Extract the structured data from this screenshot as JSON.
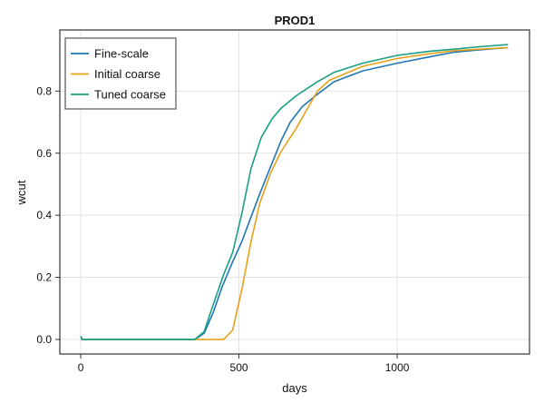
{
  "chart_data": {
    "type": "line",
    "title": "PROD1",
    "xlabel": "days",
    "ylabel": "wcut",
    "xlim": [
      -66,
      1418
    ],
    "ylim": [
      -0.047,
      0.997
    ],
    "xticks": [
      0,
      500,
      1000
    ],
    "xtick_labels": [
      "0",
      "500",
      "1000"
    ],
    "yticks": [
      0.0,
      0.2,
      0.4,
      0.6,
      0.8
    ],
    "ytick_labels": [
      "0.0",
      "0.2",
      "0.4",
      "0.6",
      "0.8"
    ],
    "grid": true,
    "legend_position": "top-left",
    "series": [
      {
        "name": "Fine-scale",
        "color": "#1f77b4",
        "x": [
          0,
          5,
          100,
          200,
          300,
          361,
          390,
          418,
          447,
          480,
          509,
          566,
          633,
          662,
          700,
          748,
          800,
          891,
          1000,
          1100,
          1178,
          1260,
          1350
        ],
        "y": [
          0.01,
          0.0,
          0.0,
          0.0,
          0.0,
          0.0,
          0.02,
          0.085,
          0.17,
          0.25,
          0.315,
          0.47,
          0.64,
          0.7,
          0.75,
          0.79,
          0.83,
          0.865,
          0.89,
          0.91,
          0.925,
          0.933,
          0.94
        ]
      },
      {
        "name": "Initial coarse",
        "color": "#e6a118",
        "x": [
          0,
          100,
          200,
          300,
          400,
          452,
          480,
          509,
          538,
          566,
          600,
          633,
          681,
          748,
          786,
          891,
          1000,
          1100,
          1178,
          1260,
          1350
        ],
        "y": [
          0.0,
          0.0,
          0.0,
          0.0,
          0.0,
          0.0,
          0.03,
          0.16,
          0.315,
          0.44,
          0.536,
          0.605,
          0.68,
          0.8,
          0.835,
          0.88,
          0.905,
          0.92,
          0.93,
          0.935,
          0.94
        ]
      },
      {
        "name": "Tuned coarse",
        "color": "#16a085",
        "x": [
          0,
          5,
          100,
          200,
          300,
          361,
          390,
          418,
          452,
          480,
          509,
          538,
          570,
          604,
          633,
          681,
          748,
          800,
          891,
          1000,
          1100,
          1178,
          1260,
          1350
        ],
        "y": [
          0.01,
          0.0,
          0.0,
          0.0,
          0.0,
          0.0,
          0.025,
          0.11,
          0.21,
          0.28,
          0.405,
          0.55,
          0.65,
          0.71,
          0.745,
          0.785,
          0.83,
          0.86,
          0.89,
          0.915,
          0.928,
          0.935,
          0.943,
          0.95
        ]
      }
    ]
  }
}
